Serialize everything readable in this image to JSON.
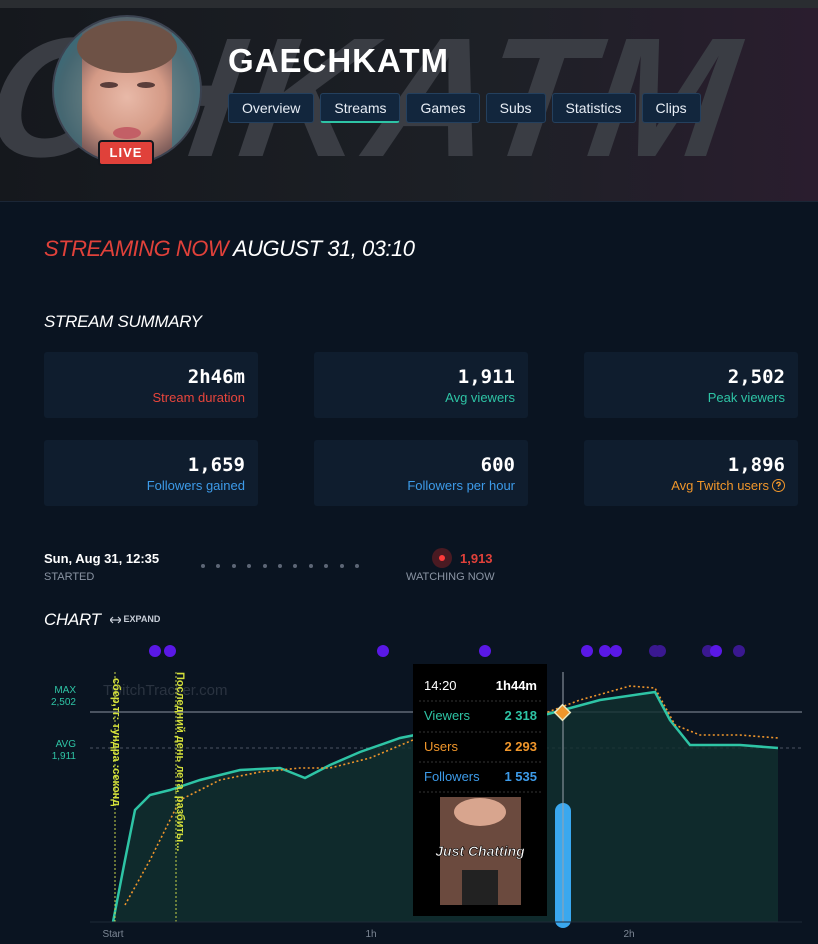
{
  "banner_text": "CHKATM",
  "header": {
    "name": "GAECHKATM",
    "live": "LIVE",
    "nav": [
      {
        "label": "Overview",
        "active": false
      },
      {
        "label": "Streams",
        "active": true
      },
      {
        "label": "Games",
        "active": false
      },
      {
        "label": "Subs",
        "active": false
      },
      {
        "label": "Statistics",
        "active": false
      },
      {
        "label": "Clips",
        "active": false
      }
    ]
  },
  "status": {
    "live": "STREAMING NOW",
    "date": "AUGUST 31, 03:10"
  },
  "summary": {
    "title": "STREAM SUMMARY",
    "cards": [
      {
        "value": "2h46m",
        "label": "Stream duration",
        "color": "#e8453c"
      },
      {
        "value": "1,911",
        "label": "Avg viewers",
        "color": "#2ec4a5"
      },
      {
        "value": "2,502",
        "label": "Peak viewers",
        "color": "#2ec4a5"
      },
      {
        "value": "1,659",
        "label": "Followers gained",
        "color": "#3d9be9"
      },
      {
        "value": "600",
        "label": "Followers per hour",
        "color": "#3d9be9"
      },
      {
        "value": "1,896",
        "label": "Avg Twitch users",
        "color": "#f0962b"
      }
    ]
  },
  "started": {
    "time": "Sun, Aug 31, 12:35",
    "label": "STARTED"
  },
  "watching": {
    "value": "1,913",
    "label": "WATCHING NOW"
  },
  "chart": {
    "title": "CHART",
    "expand": "EXPAND",
    "watermark": "TwitchTracker.com",
    "max_label": "MAX",
    "max": "2,502",
    "avg_label": "AVG",
    "avg": "1,911",
    "x_labels": [
      "Start",
      "1h",
      "2h"
    ],
    "annotations": [
      "сбер,тг: тундра :секонд",
      "Последний день лета, разбиты..."
    ],
    "tooltip": {
      "time": "14:20",
      "duration": "1h44m",
      "rows": [
        {
          "label": "Viewers",
          "value": "2 318",
          "color": "#2ec4a5"
        },
        {
          "label": "Users",
          "value": "2 293",
          "color": "#f0962b"
        },
        {
          "label": "Followers",
          "value": "1 535",
          "color": "#3d9be9"
        }
      ],
      "game": "Just Chatting"
    }
  }
}
